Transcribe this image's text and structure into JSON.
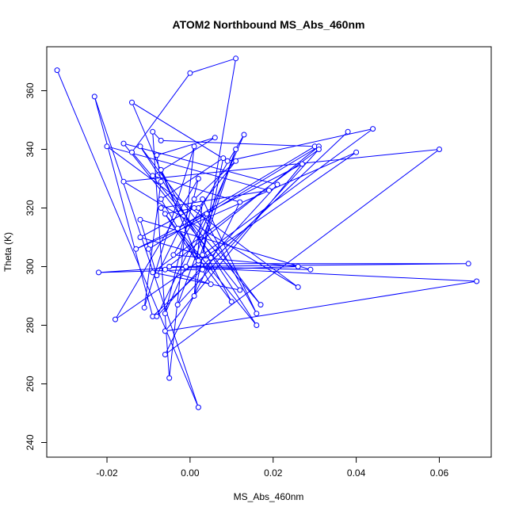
{
  "chart_data": {
    "type": "scatter",
    "title": "ATOM2 Northbound MS_Abs_460nm",
    "xlabel": "MS_Abs_460nm",
    "ylabel": "Theta (K)",
    "xlim": [
      -0.0345,
      0.0725
    ],
    "ylim": [
      235,
      375
    ],
    "x_ticks": [
      -0.02,
      0.0,
      0.02,
      0.04,
      0.06
    ],
    "x_tick_labels": [
      "-0.02",
      "0.00",
      "0.02",
      "0.04",
      "0.06"
    ],
    "y_ticks": [
      240,
      260,
      280,
      300,
      320,
      340,
      360
    ],
    "y_tick_labels": [
      "240",
      "260",
      "280",
      "300",
      "320",
      "340",
      "360"
    ],
    "grid": false,
    "connected": true,
    "colors": {
      "series": "#0000ff",
      "axis": "#000000",
      "background": "#ffffff"
    },
    "series": [
      {
        "x": [
          -0.032,
          0.002,
          -0.023,
          -0.009,
          0.038,
          0.003,
          -0.014,
          0.009,
          0.044,
          0.003,
          0.011,
          0.0,
          -0.014,
          0.017,
          -0.012,
          0.016,
          -0.003,
          0.03,
          -0.007,
          -0.009,
          -0.005,
          0.001,
          -0.011,
          -0.007,
          -0.008,
          0.006,
          -0.009,
          0.012,
          -0.006,
          0.06,
          -0.016,
          0.026,
          -0.02,
          0.019,
          -0.007,
          0.002,
          0.067,
          -0.005,
          0.069,
          -0.006,
          0.027,
          -0.013,
          0.04,
          -0.018,
          0.002,
          -0.006,
          0.013,
          -0.004,
          0.026,
          -0.022,
          -0.001,
          0.029,
          -0.012,
          -0.008,
          0.001,
          0.011,
          0.002,
          0.016,
          0.003,
          0.001,
          0.008,
          -0.007,
          0.005,
          -0.006,
          0.031,
          -0.01,
          0.004,
          -0.008,
          0.021,
          -0.016,
          0.012,
          -0.009,
          0.031,
          -0.003,
          0.011,
          0.002,
          -0.007,
          0.01,
          -0.006,
          0.001,
          -0.012,
          0.005
        ],
        "y": [
          367,
          252,
          358,
          283,
          346,
          299,
          356,
          336,
          347,
          304,
          371,
          366,
          339,
          287,
          341,
          280,
          313,
          341,
          343,
          346,
          262,
          341,
          286,
          329,
          338,
          344,
          331,
          322,
          270,
          340,
          329,
          293,
          341,
          326,
          320,
          301,
          301,
          300,
          295,
          278,
          335,
          306,
          339,
          282,
          330,
          284,
          345,
          304,
          300,
          298,
          300,
          299,
          316,
          297,
          323,
          336,
          320,
          284,
          323,
          290,
          337,
          323,
          294,
          299,
          341,
          306,
          318,
          283,
          328,
          342,
          292,
          298,
          340,
          287,
          340,
          302,
          333,
          288,
          318,
          320,
          310,
          303
        ]
      }
    ]
  }
}
